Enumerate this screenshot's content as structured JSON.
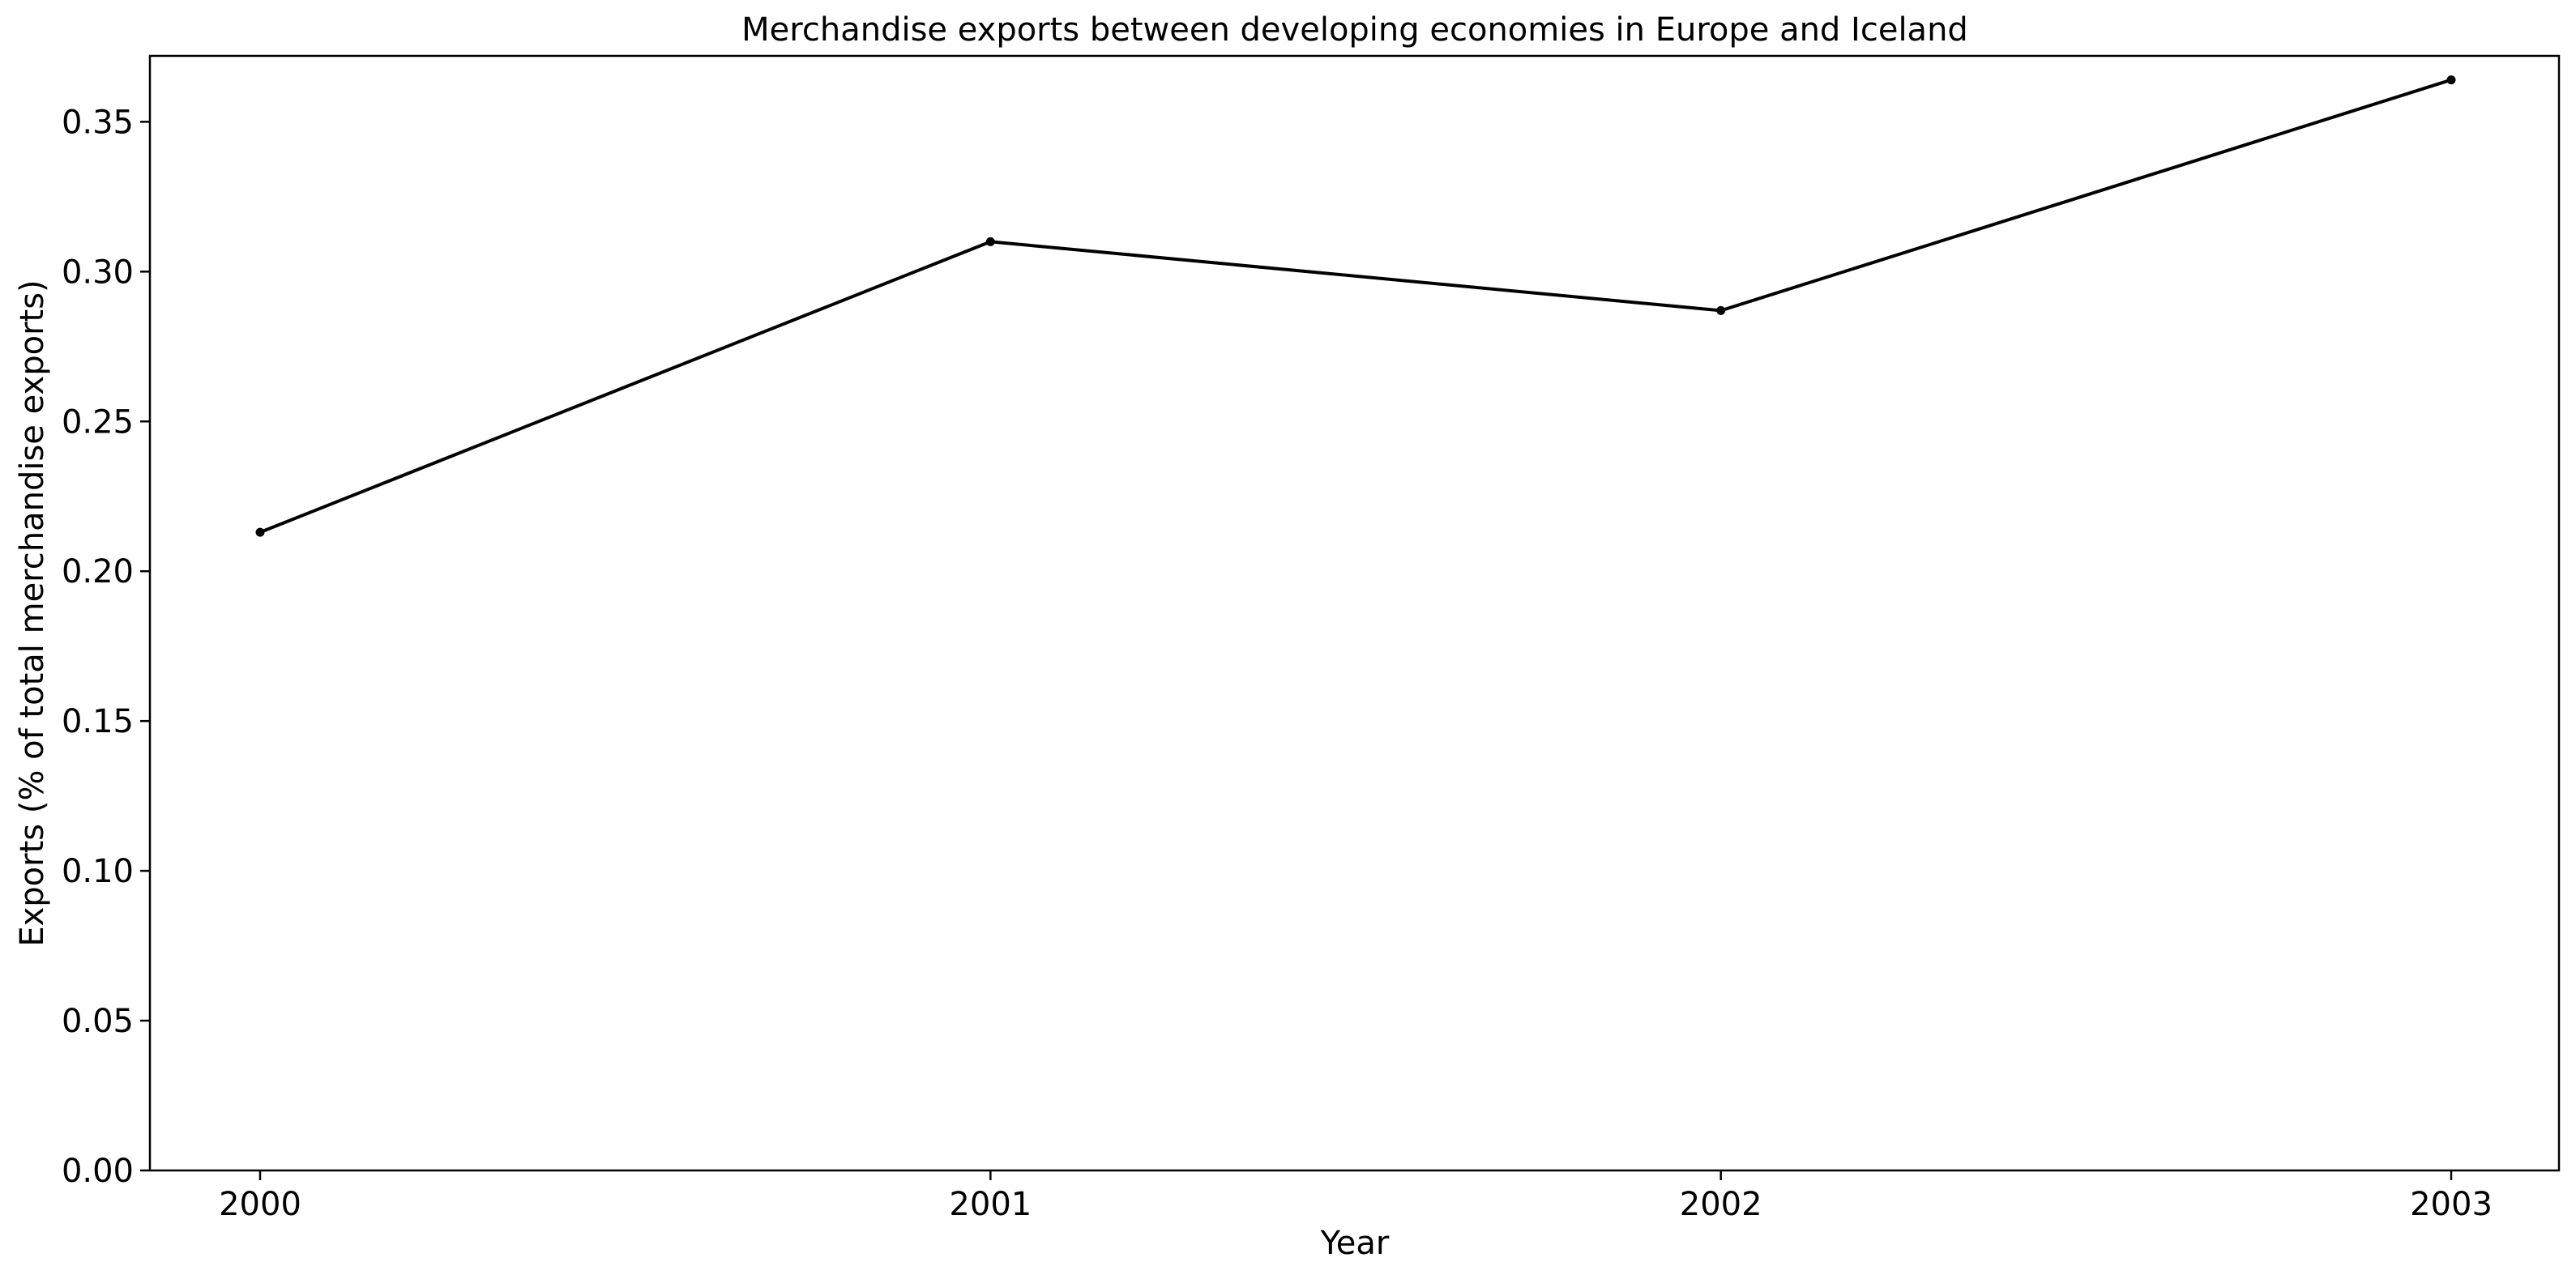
{
  "chart_data": {
    "type": "line",
    "title": "Merchandise exports between developing economies in Europe and Iceland",
    "xlabel": "Year",
    "ylabel": "Exports (% of total merchandise exports)",
    "x": [
      "2000",
      "2001",
      "2002",
      "2003"
    ],
    "series": [
      {
        "values": [
          0.213,
          0.31,
          0.287,
          0.364
        ],
        "color": "#000000"
      }
    ],
    "ylim": [
      0,
      0.372
    ],
    "yticks": [
      "0.00",
      "0.05",
      "0.10",
      "0.15",
      "0.20",
      "0.25",
      "0.30",
      "0.35"
    ],
    "grid": false,
    "legend": "none"
  }
}
